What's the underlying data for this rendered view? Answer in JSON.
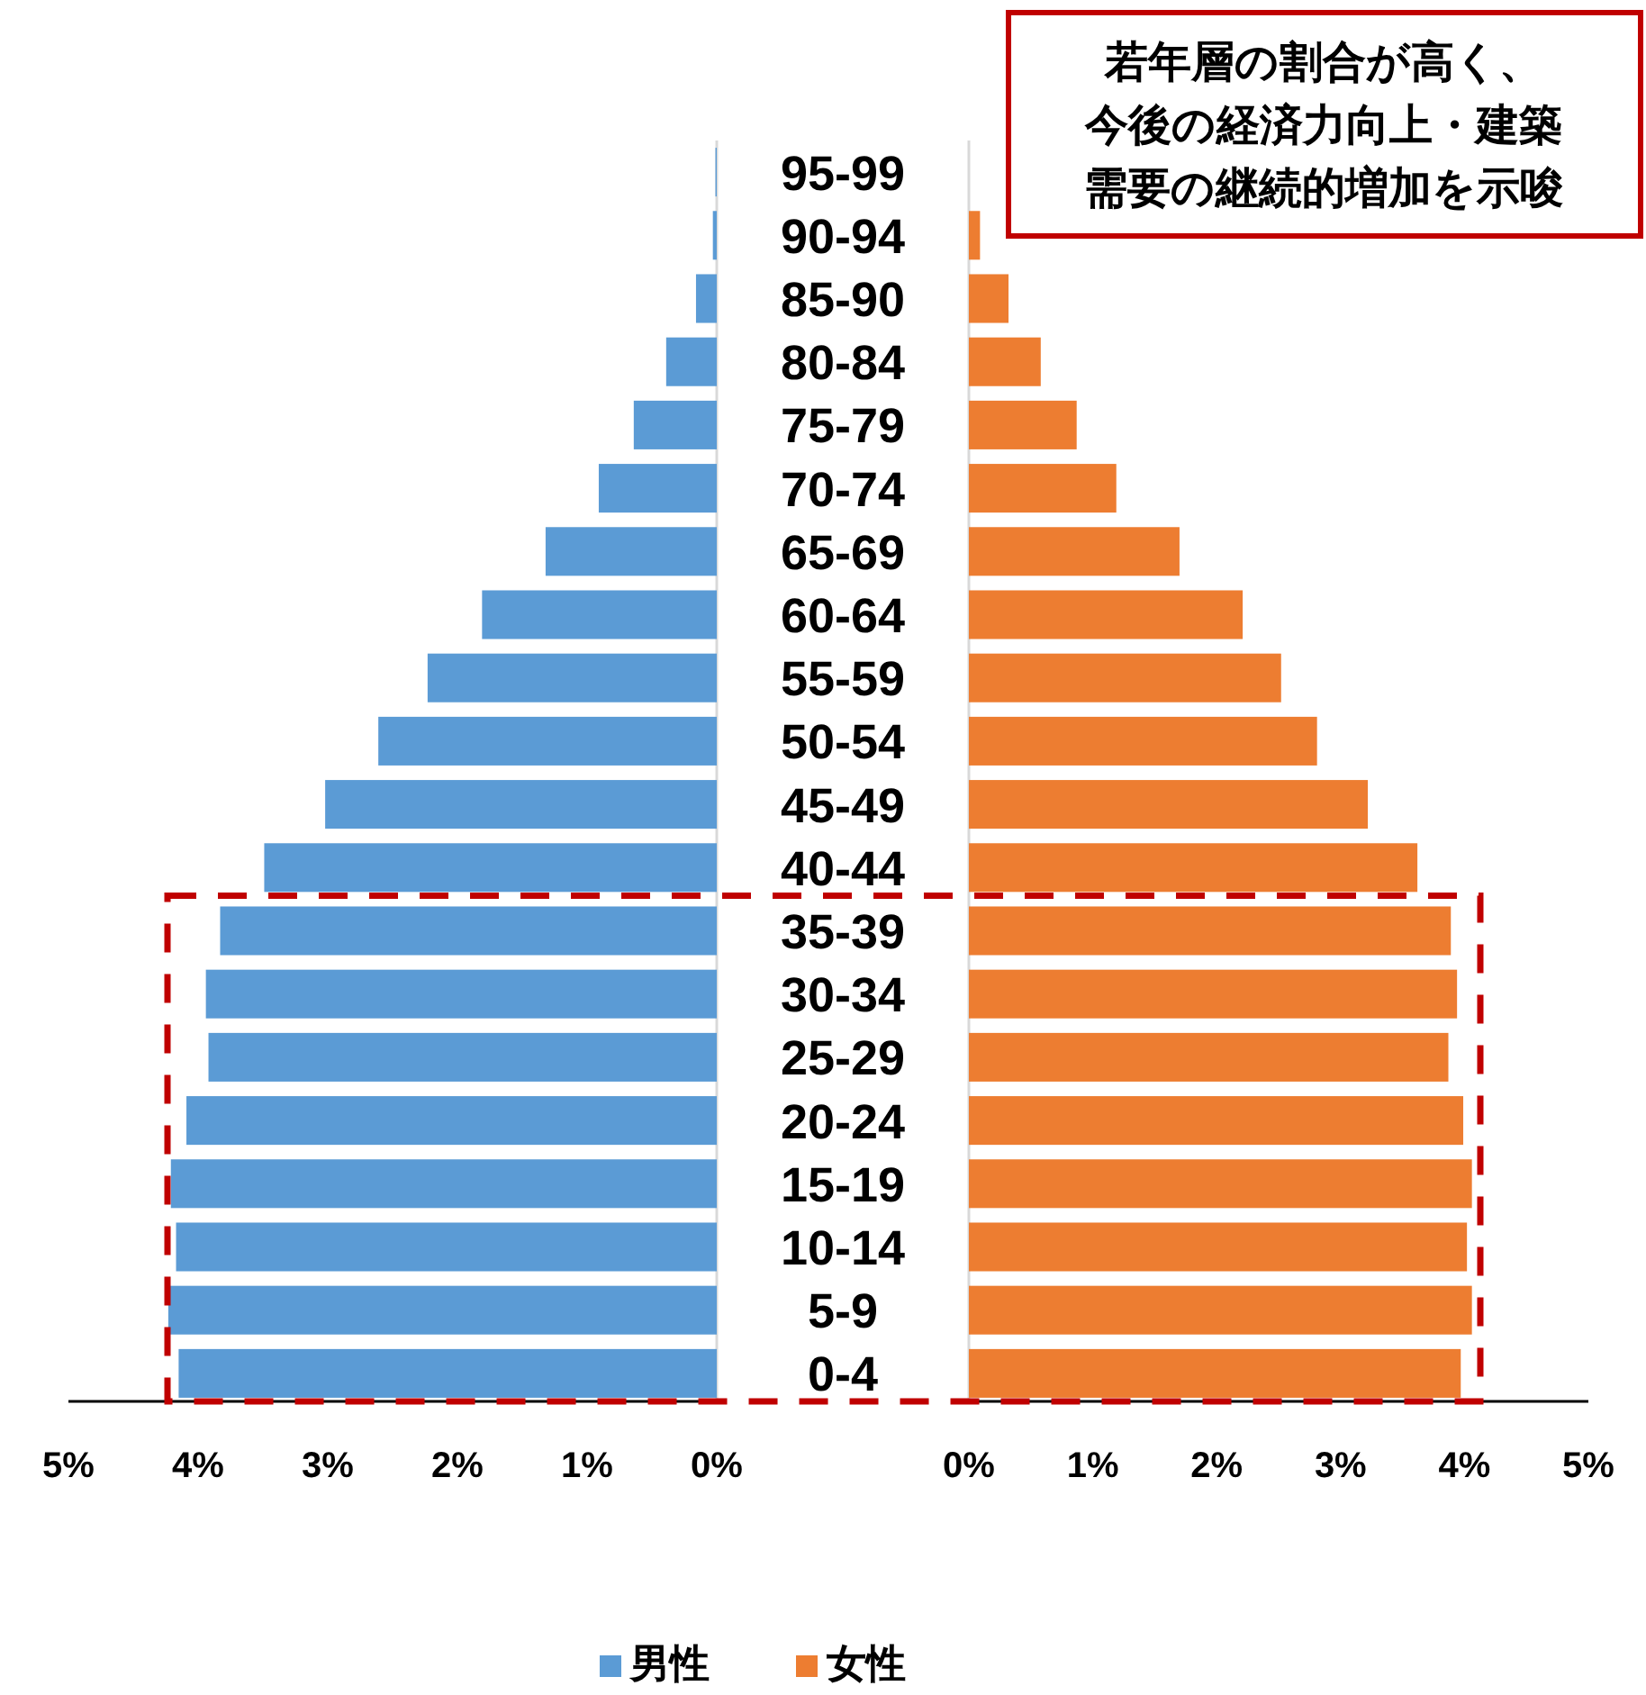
{
  "chart_data": [
    {
      "type": "bar",
      "orientation": "horizontal",
      "categories": [
        "95-99",
        "90-94",
        "85-90",
        "80-84",
        "75-79",
        "70-74",
        "65-69",
        "60-64",
        "55-59",
        "50-54",
        "45-49",
        "40-44",
        "35-39",
        "30-34",
        "25-29",
        "20-24",
        "15-19",
        "10-14",
        "5-9",
        "0-4"
      ],
      "series": [
        {
          "name": "男性",
          "color": "#5b9bd5",
          "values": [
            0.01,
            0.03,
            0.16,
            0.39,
            0.64,
            0.91,
            1.32,
            1.81,
            2.23,
            2.61,
            3.02,
            3.49,
            3.83,
            3.94,
            3.92,
            4.09,
            4.21,
            4.17,
            4.23,
            4.15
          ]
        }
      ],
      "xlim": [
        5,
        0
      ],
      "xticks": [
        {
          "value": 5,
          "label": "5%"
        },
        {
          "value": 4,
          "label": "4%"
        },
        {
          "value": 3,
          "label": "3%"
        },
        {
          "value": 2,
          "label": "2%"
        },
        {
          "value": 1,
          "label": "1%"
        },
        {
          "value": 0,
          "label": "0%"
        }
      ],
      "grid": false,
      "legend": "bottom"
    },
    {
      "type": "bar",
      "orientation": "horizontal",
      "categories": [
        null,
        null,
        null,
        null,
        null,
        null,
        null,
        null,
        null,
        null,
        null,
        null,
        null,
        null,
        null,
        null,
        null,
        null,
        null,
        null
      ],
      "series": [
        {
          "name": "女性",
          "color": "#ed7d31",
          "values": [
            0,
            0.09,
            0.32,
            0.58,
            0.87,
            1.19,
            1.7,
            2.21,
            2.52,
            2.81,
            3.22,
            3.62,
            3.89,
            3.94,
            3.87,
            3.99,
            4.06,
            4.02,
            4.06,
            3.97
          ]
        }
      ],
      "xlim": [
        0,
        5
      ],
      "xticks": [
        {
          "value": 0,
          "label": "0%"
        },
        {
          "value": 1,
          "label": "1%"
        },
        {
          "value": 2,
          "label": "2%"
        },
        {
          "value": 3,
          "label": "3%"
        },
        {
          "value": 4,
          "label": "4%"
        },
        {
          "value": 5,
          "label": "5%"
        }
      ],
      "grid": false,
      "legend": "bottom",
      "tick_labels": "x",
      "annotations": [
        "若年層の割合が高く、今後の経済力向上・建築需要の継続的増加を示唆"
      ]
    }
  ]
}
